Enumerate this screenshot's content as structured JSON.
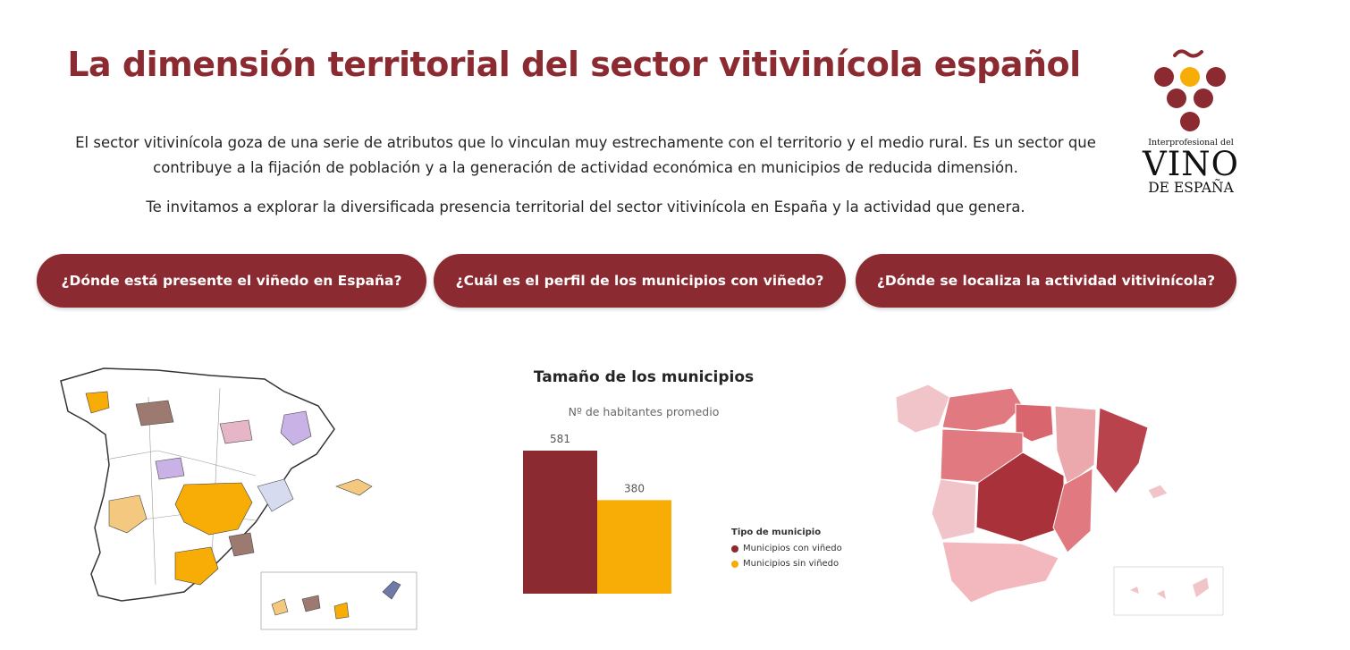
{
  "header": {
    "title": "La dimensión territorial del sector vitivinícola español",
    "intro_1": "El sector vitivinícola goza de una serie de atributos que lo vinculan muy estrechamente con el territorio y el medio rural. Es un sector que contribuye a la fijación de población y a la generación de actividad económica en municipios de reducida dimensión.",
    "intro_2": "Te invitamos a explorar la diversificada presencia territorial del sector vitivinícola en España y la actividad que genera."
  },
  "logo": {
    "small": "Interprofesional del",
    "big": "VINO",
    "bottom": "DE ESPAÑA"
  },
  "nav": {
    "btn1": "¿Dónde está presente el viñedo en España?",
    "btn2": "¿Cuál es el perfil de los municipios con viñedo?",
    "btn3": "¿Dónde se localiza la actividad vitivinícola?"
  },
  "colors": {
    "brand": "#8b2a30",
    "accent": "#f7ac06"
  },
  "chart_data": {
    "type": "bar",
    "title": "Tamaño de los municipios",
    "subtitle": "Nº de habitantes promedio",
    "categories": [
      "Municipios con viñedo",
      "Municipios sin viñedo"
    ],
    "values": [
      581,
      380
    ],
    "colors": [
      "#8b2a30",
      "#f7ac06"
    ],
    "legend_title": "Tipo de municipio",
    "legend_position": "right",
    "ylim": [
      0,
      581
    ],
    "grid": false
  }
}
